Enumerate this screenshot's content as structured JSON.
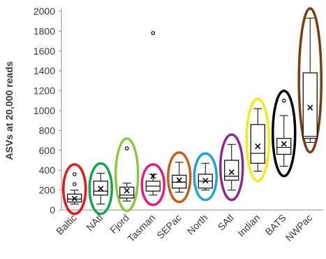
{
  "chart_data": {
    "type": "box",
    "ylabel": "ASVs at 20,000 reads",
    "ylim": [
      0,
      2000
    ],
    "yticks": [
      0,
      200,
      400,
      600,
      800,
      1000,
      1200,
      1400,
      1600,
      1800,
      2000
    ],
    "grid": false,
    "categories": [
      "Baltic",
      "NAtl",
      "Fjord",
      "Tasman",
      "SEPac",
      "North",
      "SAtl",
      "Indian",
      "BATS",
      "NWPac"
    ],
    "boxes": [
      {
        "name": "Baltic",
        "min": 60,
        "q1": 80,
        "median": 110,
        "q3": 160,
        "max": 200,
        "mean": 115,
        "outliers": [
          260,
          360
        ],
        "ellipse_color": "#e8141e"
      },
      {
        "name": "NAtl",
        "min": 60,
        "q1": 150,
        "median": 190,
        "q3": 290,
        "max": 370,
        "mean": 215,
        "outliers": [],
        "ellipse_color": "#12a64b"
      },
      {
        "name": "Fjord",
        "min": 90,
        "q1": 120,
        "median": 150,
        "q3": 230,
        "max": 270,
        "mean": 195,
        "outliers": [
          620
        ],
        "ellipse_color": "#8dc63f"
      },
      {
        "name": "Tasman",
        "min": 150,
        "q1": 190,
        "median": 240,
        "q3": 290,
        "max": 360,
        "mean": 340,
        "outliers": [
          1780
        ],
        "ellipse_color": "#e6197e"
      },
      {
        "name": "SEPac",
        "min": 180,
        "q1": 220,
        "median": 280,
        "q3": 350,
        "max": 480,
        "mean": 300,
        "outliers": [],
        "ellipse_color": "#c0601c"
      },
      {
        "name": "North",
        "min": 200,
        "q1": 220,
        "median": 290,
        "q3": 360,
        "max": 470,
        "mean": 295,
        "outliers": [],
        "ellipse_color": "#1aa3dd"
      },
      {
        "name": "SAtl",
        "min": 200,
        "q1": 300,
        "median": 340,
        "q3": 500,
        "max": 660,
        "mean": 380,
        "outliers": [],
        "ellipse_color": "#8e2a8c"
      },
      {
        "name": "Indian",
        "min": 390,
        "q1": 470,
        "median": 570,
        "q3": 860,
        "max": 1020,
        "mean": 640,
        "outliers": [],
        "ellipse_color": "#f5eb14"
      },
      {
        "name": "BATS",
        "min": 440,
        "q1": 560,
        "median": 630,
        "q3": 720,
        "max": 950,
        "mean": 665,
        "outliers": [
          1100
        ],
        "ellipse_color": "#000000"
      },
      {
        "name": "NWPac",
        "min": 680,
        "q1": 720,
        "median": 740,
        "q3": 1380,
        "max": 1930,
        "mean": 1030,
        "outliers": [],
        "ellipse_color": "#7a3a12"
      }
    ]
  }
}
